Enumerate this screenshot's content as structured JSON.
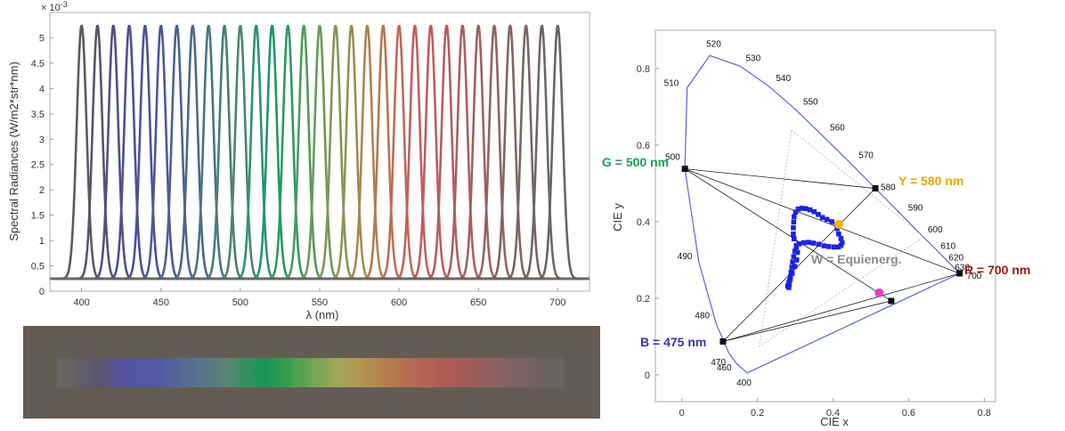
{
  "chart_data": [
    {
      "type": "line",
      "ylabel": "Spectral Radiances (W/m2*str*nm)",
      "xlabel": "λ (nm)",
      "y_exponent_label": "× 10",
      "y_exponent_power": "-3",
      "xlim": [
        380,
        720
      ],
      "ylim": [
        0,
        5.5
      ],
      "xticks": [
        "400",
        "450",
        "500",
        "550",
        "600",
        "650",
        "700"
      ],
      "yticks": [
        "0",
        "0.5",
        "1",
        "1.5",
        "2",
        "2.5",
        "3",
        "3.5",
        "4",
        "4.5",
        "5"
      ],
      "baseline": 0.25,
      "peak": 5.25,
      "grid": false,
      "series_peaks_nm": [
        400,
        410,
        420,
        430,
        440,
        450,
        460,
        470,
        480,
        490,
        500,
        510,
        520,
        530,
        540,
        550,
        560,
        570,
        580,
        590,
        600,
        610,
        620,
        630,
        640,
        650,
        660,
        670,
        680,
        690,
        700
      ],
      "series_colors": [
        "#5c5a5c",
        "#57536a",
        "#51507e",
        "#4f4f8f",
        "#4d5196",
        "#4d5995",
        "#4c628f",
        "#4a6a86",
        "#4a7480",
        "#4a7d77",
        "#4a8570",
        "#2f936d",
        "#1f976a",
        "#2f9963",
        "#4f9a5c",
        "#6b9958",
        "#839555",
        "#998f53",
        "#ab8452",
        "#b77752",
        "#c06a57",
        "#c1605a",
        "#bd5d5c",
        "#b45e5f",
        "#a86061",
        "#9c6263",
        "#8f6464",
        "#826564",
        "#776664",
        "#6e6764",
        "#676664"
      ]
    },
    {
      "type": "swatch_strip",
      "background": "#635c52",
      "colors": [
        "#676463",
        "#605d68",
        "#5a5673",
        "#58559a",
        "#5257a6",
        "#5359a4",
        "#54629b",
        "#56708c",
        "#587b81",
        "#588777",
        "#358f62",
        "#1a9455",
        "#2f9b4e",
        "#55a151",
        "#7ba553",
        "#9ea855",
        "#ad9b52",
        "#b38a4f",
        "#b37a4c",
        "#b66c50",
        "#b66255",
        "#ae5b56",
        "#a45d5a",
        "#975e5d",
        "#8a6061",
        "#7d6162",
        "#726060",
        "#6d6260"
      ]
    },
    {
      "type": "scatter",
      "xlabel": "CIE x",
      "ylabel": "CIE y",
      "xlim": [
        -0.07,
        0.83
      ],
      "ylim": [
        -0.07,
        0.9
      ],
      "xticks": [
        "0",
        "0.2",
        "0.4",
        "0.6",
        "0.8"
      ],
      "yticks": [
        "0",
        "0.2",
        "0.4",
        "0.6",
        "0.8"
      ],
      "spectral_locus_color": "#5b63d8",
      "wavelength_labels": [
        {
          "nm": "400",
          "x": 0.173,
          "y": 0.005
        },
        {
          "nm": "460",
          "x": 0.144,
          "y": 0.03
        },
        {
          "nm": "470",
          "x": 0.124,
          "y": 0.058
        },
        {
          "nm": "480",
          "x": 0.091,
          "y": 0.133
        },
        {
          "nm": "490",
          "x": 0.045,
          "y": 0.295
        },
        {
          "nm": "500",
          "x": 0.008,
          "y": 0.538
        },
        {
          "nm": "510",
          "x": 0.014,
          "y": 0.75
        },
        {
          "nm": "520",
          "x": 0.074,
          "y": 0.834
        },
        {
          "nm": "530",
          "x": 0.155,
          "y": 0.806
        },
        {
          "nm": "540",
          "x": 0.23,
          "y": 0.754
        },
        {
          "nm": "550",
          "x": 0.302,
          "y": 0.692
        },
        {
          "nm": "560",
          "x": 0.373,
          "y": 0.624
        },
        {
          "nm": "570",
          "x": 0.444,
          "y": 0.555
        },
        {
          "nm": "580",
          "x": 0.512,
          "y": 0.487
        },
        {
          "nm": "590",
          "x": 0.575,
          "y": 0.424
        },
        {
          "nm": "600",
          "x": 0.627,
          "y": 0.372
        },
        {
          "nm": "610",
          "x": 0.666,
          "y": 0.334
        },
        {
          "nm": "620",
          "x": 0.692,
          "y": 0.308
        },
        {
          "nm": "630",
          "x": 0.708,
          "y": 0.292
        },
        {
          "nm": "700",
          "x": 0.735,
          "y": 0.265
        }
      ],
      "primaries": [
        {
          "label": "G = 500 nm",
          "x": 0.008,
          "y": 0.538,
          "color": "#1aa05a"
        },
        {
          "label": "Y = 580 nm",
          "x": 0.512,
          "y": 0.487,
          "color": "#e0a800"
        },
        {
          "label": "R = 700 nm",
          "x": 0.735,
          "y": 0.265,
          "color": "#a01818"
        },
        {
          "label": "B = 475 nm",
          "x": 0.109,
          "y": 0.087,
          "color": "#3434b0"
        }
      ],
      "extra_point": {
        "x": 0.554,
        "y": 0.193
      },
      "white_point": {
        "label": "W = Equienerg.",
        "x": 0.333,
        "y": 0.333,
        "color": "#8a8a8a"
      },
      "yellow_marker": {
        "x": 0.415,
        "y": 0.393,
        "color": "#f0b400"
      },
      "magenta_marker": {
        "x": 0.522,
        "y": 0.214,
        "color": "#e040c8"
      },
      "inner_triangle": [
        [
          0.29,
          0.64
        ],
        [
          0.64,
          0.36
        ],
        [
          0.205,
          0.074
        ]
      ],
      "locus_points": [
        [
          0.283,
          0.228
        ],
        [
          0.284,
          0.236
        ],
        [
          0.285,
          0.245
        ],
        [
          0.287,
          0.256
        ],
        [
          0.289,
          0.268
        ],
        [
          0.291,
          0.281
        ],
        [
          0.293,
          0.295
        ],
        [
          0.296,
          0.309
        ],
        [
          0.299,
          0.323
        ],
        [
          0.303,
          0.334
        ],
        [
          0.31,
          0.342
        ],
        [
          0.322,
          0.345
        ],
        [
          0.335,
          0.346
        ],
        [
          0.348,
          0.344
        ],
        [
          0.362,
          0.341
        ],
        [
          0.376,
          0.337
        ],
        [
          0.389,
          0.335
        ],
        [
          0.403,
          0.334
        ],
        [
          0.414,
          0.334
        ],
        [
          0.421,
          0.338
        ],
        [
          0.424,
          0.345
        ],
        [
          0.421,
          0.356
        ],
        [
          0.415,
          0.368
        ],
        [
          0.411,
          0.382
        ],
        [
          0.409,
          0.393
        ],
        [
          0.397,
          0.4
        ],
        [
          0.384,
          0.406
        ],
        [
          0.372,
          0.411
        ],
        [
          0.361,
          0.419
        ],
        [
          0.35,
          0.426
        ],
        [
          0.339,
          0.431
        ],
        [
          0.328,
          0.434
        ],
        [
          0.318,
          0.435
        ],
        [
          0.308,
          0.433
        ],
        [
          0.301,
          0.425
        ],
        [
          0.297,
          0.413
        ],
        [
          0.296,
          0.399
        ],
        [
          0.295,
          0.384
        ],
        [
          0.295,
          0.368
        ],
        [
          0.297,
          0.355
        ],
        [
          0.303,
          0.338
        ],
        [
          0.306,
          0.32
        ],
        [
          0.304,
          0.3
        ],
        [
          0.299,
          0.283
        ],
        [
          0.292,
          0.265
        ],
        [
          0.287,
          0.251
        ],
        [
          0.283,
          0.24
        ],
        [
          0.28,
          0.232
        ]
      ]
    }
  ]
}
